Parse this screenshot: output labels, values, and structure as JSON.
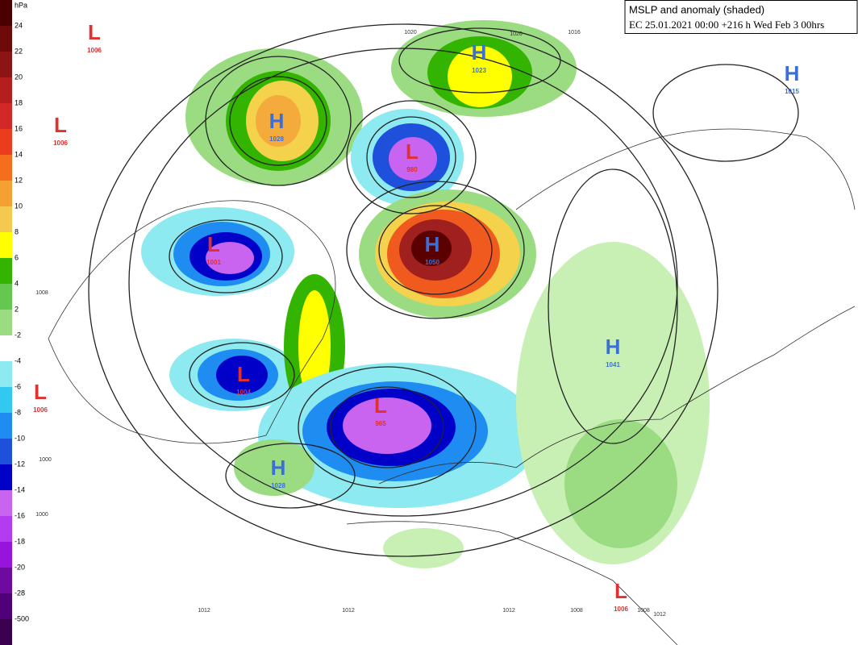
{
  "header": {
    "title": "MSLP and anomaly (shaded)",
    "subtitle": "EC 25.01.2021 00:00 +216 h Wed Feb 3 00hrs"
  },
  "colorbar": {
    "unit": "hPa",
    "labels": [
      "24",
      "22",
      "20",
      "18",
      "16",
      "14",
      "12",
      "10",
      "8",
      "6",
      "4",
      "2",
      "-2",
      "-4",
      "-6",
      "-8",
      "-10",
      "-12",
      "-14",
      "-16",
      "-18",
      "-20",
      "-28",
      "-500"
    ]
  },
  "centers": [
    {
      "symbol": "L",
      "value": "1006"
    },
    {
      "symbol": "L",
      "value": "1006"
    },
    {
      "symbol": "H",
      "value": "1028"
    },
    {
      "symbol": "H",
      "value": "1023"
    },
    {
      "symbol": "L",
      "value": "980"
    },
    {
      "symbol": "H",
      "value": "1015"
    },
    {
      "symbol": "L",
      "value": "1001"
    },
    {
      "symbol": "H",
      "value": "1050"
    },
    {
      "symbol": "L",
      "value": "1004"
    },
    {
      "symbol": "L",
      "value": "1006"
    },
    {
      "symbol": "L",
      "value": "965"
    },
    {
      "symbol": "H",
      "value": "1028"
    },
    {
      "symbol": "H",
      "value": "1041"
    },
    {
      "symbol": "L",
      "value": "1006"
    }
  ],
  "isobar_labels": [
    "1020",
    "1020",
    "1016",
    "1008",
    "1000",
    "1000",
    "1012",
    "1012",
    "1012",
    "1008",
    "1008",
    "1012"
  ]
}
